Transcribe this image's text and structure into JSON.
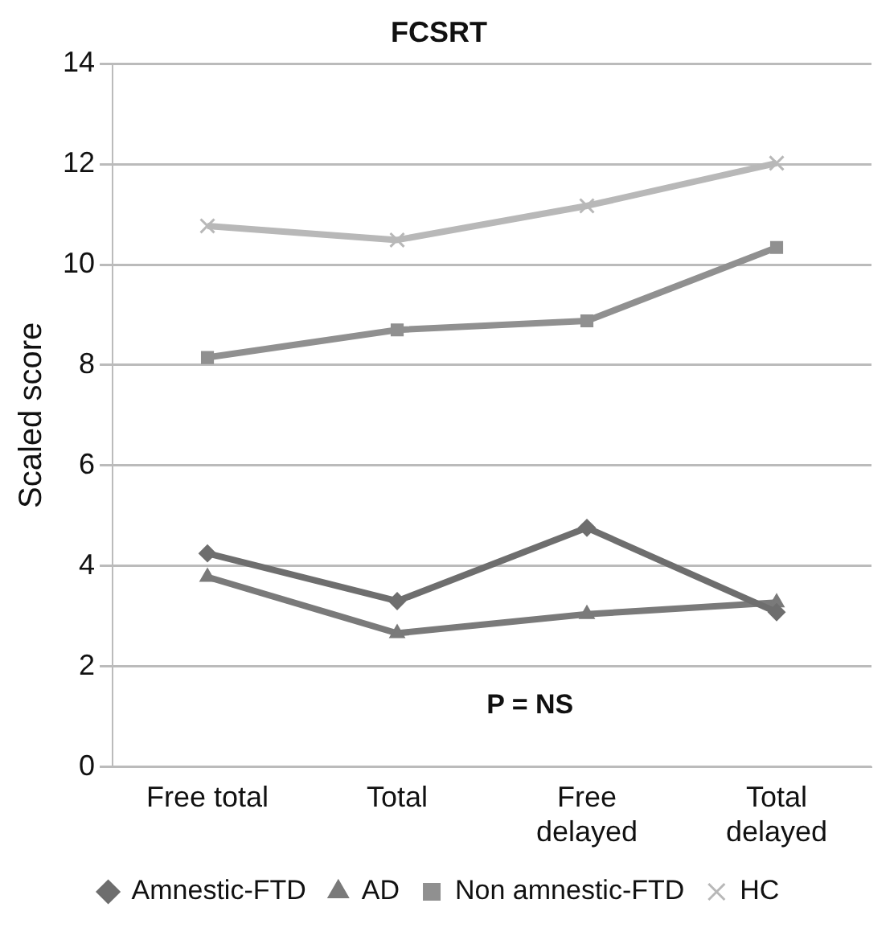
{
  "chart_data": {
    "type": "line",
    "title": "FCSRT",
    "ylabel": "Scaled score",
    "categories": [
      "Free total",
      "Total",
      "Free\ndelayed",
      "Total\ndelayed"
    ],
    "series": [
      {
        "name": "Amnestic-FTD",
        "color": "#6e6e6e",
        "marker": "diamond",
        "values": [
          4.25,
          3.3,
          4.76,
          3.08
        ]
      },
      {
        "name": "AD",
        "color": "#7a7a7a",
        "marker": "triangle",
        "values": [
          3.78,
          2.66,
          3.04,
          3.27
        ]
      },
      {
        "name": "Non amnestic-FTD",
        "color": "#909090",
        "marker": "square",
        "values": [
          8.15,
          8.7,
          8.88,
          10.34
        ]
      },
      {
        "name": "HC",
        "color": "#b8b8b8",
        "marker": "cross",
        "values": [
          10.77,
          10.49,
          11.17,
          12.02
        ]
      }
    ],
    "ylim": [
      0,
      14
    ],
    "yticks": [
      0,
      2,
      4,
      6,
      8,
      10,
      12,
      14
    ],
    "grid": "y",
    "legend": "bottom",
    "line_style": "solid",
    "annotations": [
      "P = NS"
    ]
  }
}
